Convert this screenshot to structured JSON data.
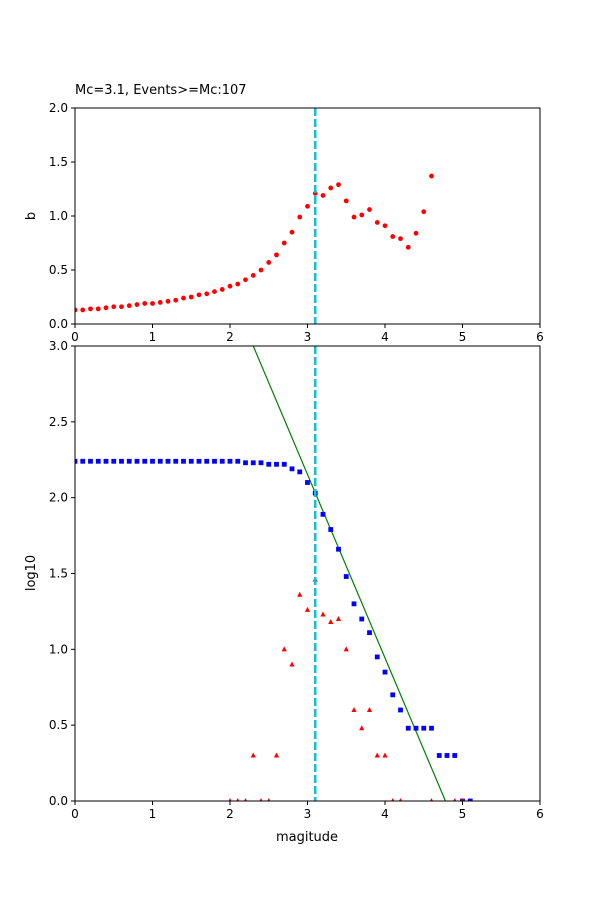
{
  "chart_data": [
    {
      "id": "top",
      "type": "scatter",
      "title": "Mc=3.1, Events>=Mc:107",
      "xlabel": "",
      "ylabel": "b",
      "xlim": [
        0,
        6
      ],
      "ylim": [
        0,
        2
      ],
      "xticks": [
        "0",
        "1",
        "2",
        "3",
        "4",
        "5",
        "6"
      ],
      "yticks": [
        "0.0",
        "0.5",
        "1.0",
        "1.5",
        "2.0"
      ],
      "grid": false,
      "mc_line": {
        "x": 3.1,
        "color": "#17becf",
        "style": "dashed"
      },
      "series": [
        {
          "color": "#ff0000",
          "marker": "circle",
          "x": [
            0.0,
            0.1,
            0.2,
            0.3,
            0.4,
            0.5,
            0.6,
            0.7,
            0.8,
            0.9,
            1.0,
            1.1,
            1.2,
            1.3,
            1.4,
            1.5,
            1.6,
            1.7,
            1.8,
            1.9,
            2.0,
            2.1,
            2.2,
            2.3,
            2.4,
            2.5,
            2.6,
            2.7,
            2.8,
            2.9,
            3.0,
            3.1,
            3.2,
            3.3,
            3.4,
            3.5,
            3.6,
            3.7,
            3.8,
            3.9,
            4.0,
            4.1,
            4.2,
            4.3,
            4.4,
            4.5,
            4.6
          ],
          "y": [
            0.13,
            0.13,
            0.14,
            0.14,
            0.15,
            0.16,
            0.16,
            0.17,
            0.18,
            0.19,
            0.19,
            0.2,
            0.21,
            0.22,
            0.24,
            0.25,
            0.27,
            0.28,
            0.3,
            0.32,
            0.35,
            0.37,
            0.41,
            0.45,
            0.5,
            0.57,
            0.64,
            0.75,
            0.85,
            0.99,
            1.09,
            1.21,
            1.19,
            1.26,
            1.29,
            1.14,
            0.99,
            1.01,
            1.06,
            0.94,
            0.91,
            0.81,
            0.79,
            0.71,
            0.84,
            1.04,
            1.37
          ]
        }
      ]
    },
    {
      "id": "bottom",
      "type": "scatter",
      "title": "",
      "xlabel": "magitude",
      "ylabel": "log10",
      "xlim": [
        0,
        6
      ],
      "ylim": [
        0,
        3
      ],
      "xticks": [
        "0",
        "1",
        "2",
        "3",
        "4",
        "5",
        "6"
      ],
      "yticks": [
        "0.0",
        "0.5",
        "1.0",
        "1.5",
        "2.0",
        "2.5",
        "3.0"
      ],
      "grid": false,
      "mc_line": {
        "x": 3.1,
        "color": "#17becf",
        "style": "dashed"
      },
      "fit_line": {
        "color": "#008000",
        "x": [
          2.3,
          4.78
        ],
        "y": [
          3.0,
          0.0
        ]
      },
      "series": [
        {
          "color": "#0000ff",
          "marker": "square",
          "x": [
            0.0,
            0.1,
            0.2,
            0.3,
            0.4,
            0.5,
            0.6,
            0.7,
            0.8,
            0.9,
            1.0,
            1.1,
            1.2,
            1.3,
            1.4,
            1.5,
            1.6,
            1.7,
            1.8,
            1.9,
            2.0,
            2.1,
            2.2,
            2.3,
            2.4,
            2.5,
            2.6,
            2.7,
            2.8,
            2.9,
            3.0,
            3.1,
            3.2,
            3.3,
            3.4,
            3.5,
            3.6,
            3.7,
            3.8,
            3.9,
            4.0,
            4.1,
            4.2,
            4.3,
            4.4,
            4.5,
            4.6,
            4.7,
            4.8,
            4.9,
            5.0,
            5.1
          ],
          "y": [
            2.24,
            2.24,
            2.24,
            2.24,
            2.24,
            2.24,
            2.24,
            2.24,
            2.24,
            2.24,
            2.24,
            2.24,
            2.24,
            2.24,
            2.24,
            2.24,
            2.24,
            2.24,
            2.24,
            2.24,
            2.24,
            2.24,
            2.23,
            2.23,
            2.23,
            2.22,
            2.22,
            2.22,
            2.19,
            2.17,
            2.1,
            2.03,
            1.89,
            1.79,
            1.66,
            1.48,
            1.3,
            1.2,
            1.11,
            0.95,
            0.85,
            0.7,
            0.6,
            0.48,
            0.48,
            0.48,
            0.48,
            0.3,
            0.3,
            0.3,
            0.0,
            0.0
          ]
        },
        {
          "color": "#ff0000",
          "marker": "triangle",
          "x": [
            2.0,
            2.1,
            2.2,
            2.3,
            2.4,
            2.5,
            2.6,
            2.7,
            2.8,
            2.9,
            3.0,
            3.1,
            3.2,
            3.3,
            3.4,
            3.5,
            3.6,
            3.7,
            3.8,
            3.9,
            4.0,
            4.1,
            4.2,
            4.6,
            4.9,
            5.0
          ],
          "y": [
            0.0,
            0.0,
            0.0,
            0.3,
            0.0,
            0.0,
            0.3,
            1.0,
            0.9,
            1.36,
            1.26,
            1.46,
            1.23,
            1.18,
            1.2,
            1.0,
            0.6,
            0.48,
            0.6,
            0.3,
            0.3,
            0.0,
            0.0,
            0.0,
            0.0,
            0.0
          ]
        }
      ]
    }
  ]
}
